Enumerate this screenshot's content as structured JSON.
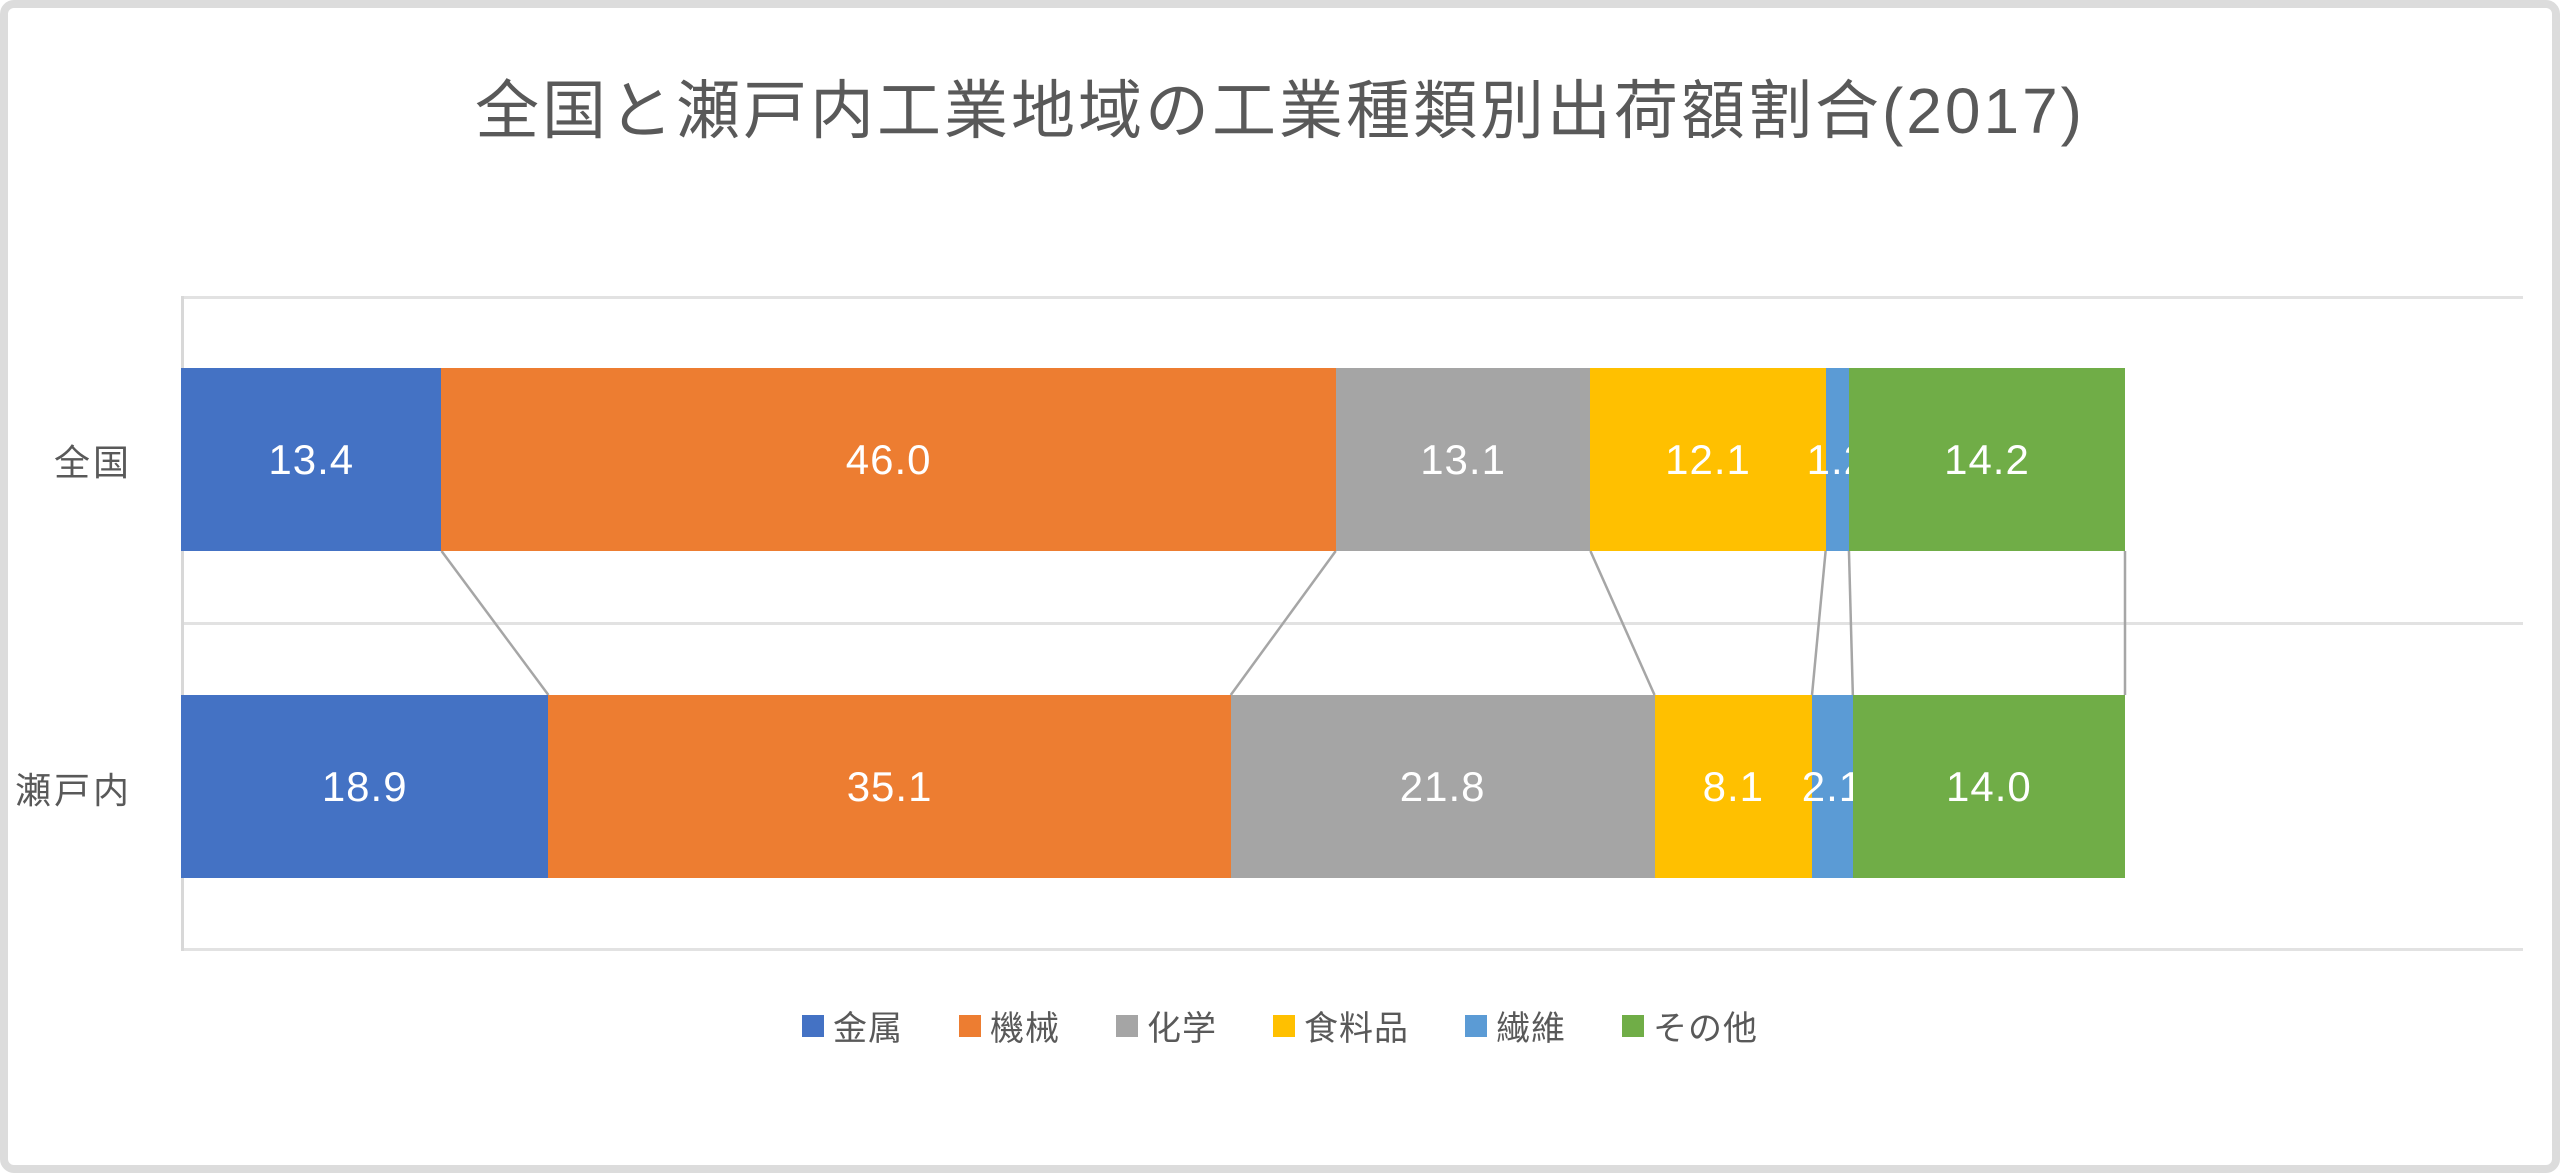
{
  "chart_data": {
    "type": "bar",
    "subtype": "horizontal-stacked-100pct",
    "title": "全国と瀬戸内工業地域の工業種類別出荷額割合(2017)",
    "categories": [
      "全国",
      "瀬戸内"
    ],
    "series": [
      {
        "name": "金属",
        "color": "#4472C4",
        "values": [
          13.4,
          18.9
        ]
      },
      {
        "name": "機械",
        "color": "#ED7D31",
        "values": [
          46.0,
          35.1
        ]
      },
      {
        "name": "化学",
        "color": "#A5A5A5",
        "values": [
          13.1,
          21.8
        ]
      },
      {
        "name": "食料品",
        "color": "#FFC000",
        "values": [
          12.1,
          8.1
        ]
      },
      {
        "name": "繊維",
        "color": "#5B9BD5",
        "values": [
          1.2,
          2.1
        ]
      },
      {
        "name": "その他",
        "color": "#70AD47",
        "values": [
          14.2,
          14.0
        ]
      }
    ],
    "xlim": [
      0,
      100
    ],
    "value_labels": true,
    "label_format": "one-decimal",
    "label_color": "#FFFFFF",
    "legend_position": "bottom",
    "series_connector_lines": true,
    "grid": "horizontal-band-lines"
  },
  "style": {
    "title_color": "#595959",
    "axis_text_color": "#595959",
    "gridline_color": "#E2E2E2",
    "connector_color": "#A6A6A6",
    "card_border_color": "#DCDCDC",
    "background_color": "#FFFFFF"
  }
}
